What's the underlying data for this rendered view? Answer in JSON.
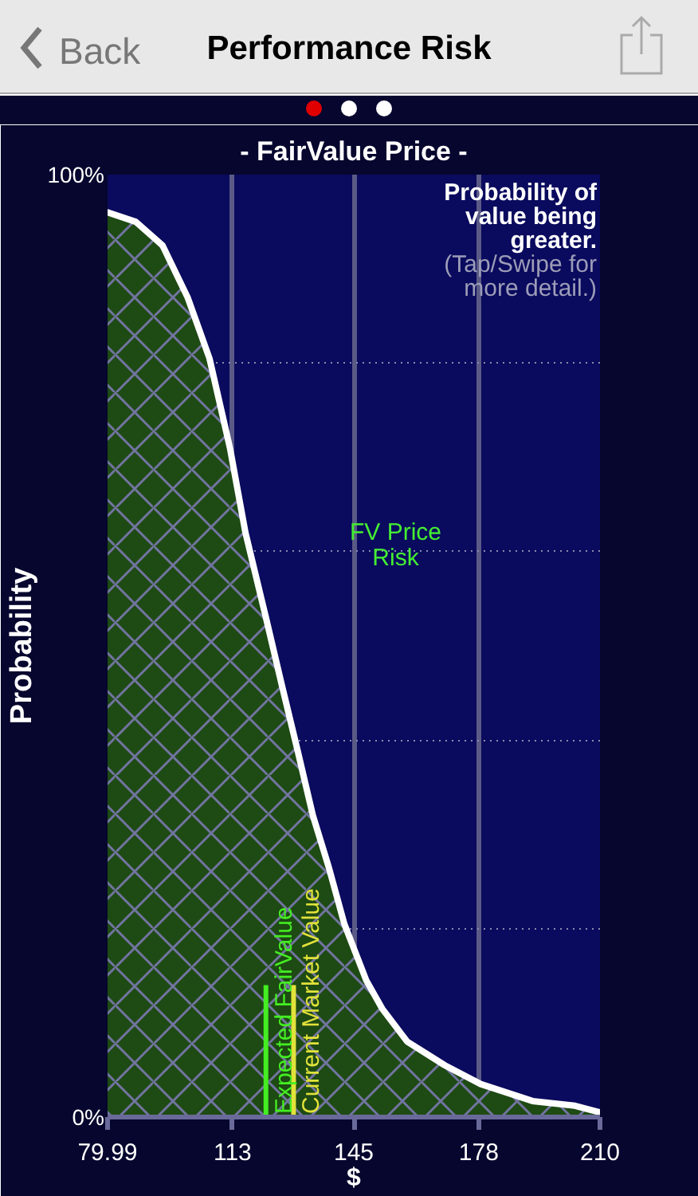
{
  "chart_data": {
    "type": "area",
    "title": "Performance Risk",
    "subtitle": "- FairValue Price -",
    "xlabel": "$",
    "ylabel": "Probability",
    "x": [
      79.99,
      87.4,
      94.5,
      101.1,
      106.9,
      112.3,
      116.4,
      121.8,
      125.9,
      130.1,
      134.2,
      138.4,
      142.5,
      148.3,
      152.5,
      159.1,
      169.0,
      178.5,
      192.2,
      203.4,
      210
    ],
    "series": [
      {
        "color": "#1e4a14",
        "values": [
          96,
          95,
          92.5,
          87,
          80.5,
          71,
          62,
          53,
          46,
          39,
          32,
          26.5,
          20.5,
          14.5,
          11.5,
          8,
          5.5,
          3.5,
          1.7,
          1.2,
          0.5
        ]
      }
    ],
    "xlim": [
      79.99,
      210
    ],
    "xticks": [
      79.99,
      113,
      145,
      178,
      210
    ],
    "ylim": [
      0,
      100
    ],
    "yticks": [
      {
        "value": 0,
        "label": "0%"
      },
      {
        "value": 20,
        "label": null
      },
      {
        "value": 40,
        "label": null
      },
      {
        "value": 60,
        "label": null
      },
      {
        "value": 80,
        "label": null
      },
      {
        "value": 100,
        "label": "100%"
      }
    ],
    "ref_lines": [
      {
        "axis": "x",
        "value": 121.8,
        "label": "Expected FairValue",
        "color": "#44ee22"
      },
      {
        "axis": "x",
        "value": 129.1,
        "label": "Current Market Value",
        "color": "#e2e23a"
      }
    ],
    "annotations": [
      "Probability of value being greater.",
      "(Tap/Swipe for more detail.)",
      "FV Price Risk",
      "Back"
    ],
    "grid": true
  }
}
